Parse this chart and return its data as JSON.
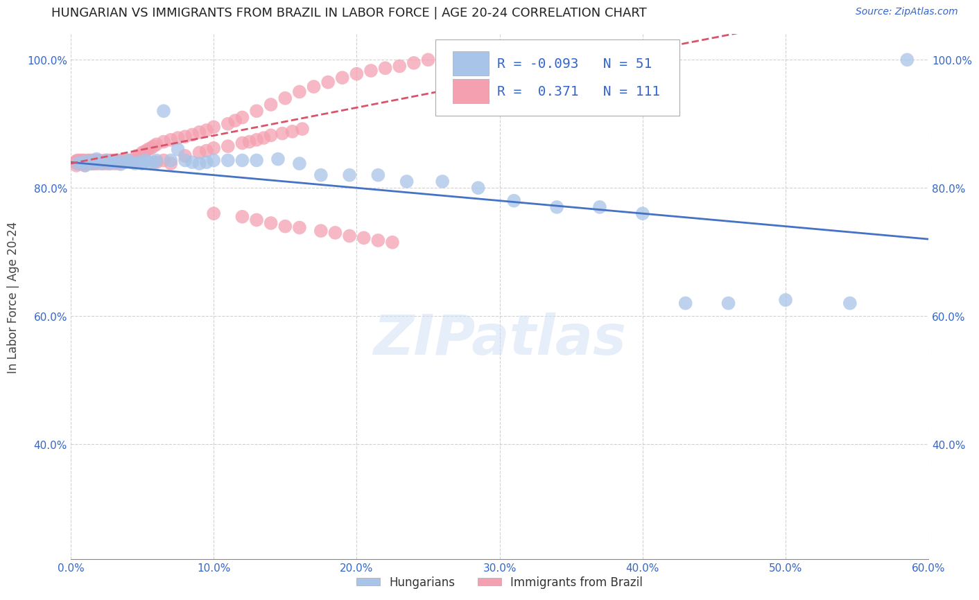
{
  "title": "HUNGARIAN VS IMMIGRANTS FROM BRAZIL IN LABOR FORCE | AGE 20-24 CORRELATION CHART",
  "source": "Source: ZipAtlas.com",
  "ylabel": "In Labor Force | Age 20-24",
  "xlim": [
    0.0,
    0.6
  ],
  "ylim": [
    0.22,
    1.04
  ],
  "xtick_labels": [
    "0.0%",
    "10.0%",
    "20.0%",
    "30.0%",
    "40.0%",
    "50.0%",
    "60.0%"
  ],
  "xtick_vals": [
    0.0,
    0.1,
    0.2,
    0.3,
    0.4,
    0.5,
    0.6
  ],
  "ytick_labels": [
    "40.0%",
    "60.0%",
    "80.0%",
    "100.0%"
  ],
  "ytick_vals": [
    0.4,
    0.6,
    0.8,
    1.0
  ],
  "blue_color": "#A8C4E8",
  "pink_color": "#F4A0B0",
  "blue_line_color": "#4472C4",
  "pink_line_color": "#D9536A",
  "R_blue": "-0.093",
  "N_blue": "51",
  "R_pink": "0.371",
  "N_pink": "111",
  "watermark": "ZIPatlas",
  "blue_scatter_x": [
    0.005,
    0.008,
    0.01,
    0.012,
    0.015,
    0.018,
    0.02,
    0.022,
    0.025,
    0.028,
    0.03,
    0.032,
    0.035,
    0.038,
    0.04,
    0.042,
    0.045,
    0.048,
    0.05,
    0.052,
    0.055,
    0.058,
    0.06,
    0.065,
    0.07,
    0.075,
    0.08,
    0.085,
    0.09,
    0.095,
    0.1,
    0.11,
    0.12,
    0.13,
    0.145,
    0.16,
    0.175,
    0.195,
    0.215,
    0.235,
    0.26,
    0.285,
    0.31,
    0.34,
    0.37,
    0.4,
    0.43,
    0.46,
    0.5,
    0.545,
    0.585
  ],
  "blue_scatter_y": [
    0.838,
    0.84,
    0.835,
    0.842,
    0.838,
    0.845,
    0.84,
    0.838,
    0.843,
    0.838,
    0.84,
    0.843,
    0.837,
    0.84,
    0.843,
    0.84,
    0.838,
    0.84,
    0.838,
    0.843,
    0.84,
    0.84,
    0.843,
    0.92,
    0.843,
    0.86,
    0.843,
    0.84,
    0.838,
    0.84,
    0.843,
    0.843,
    0.843,
    0.843,
    0.845,
    0.838,
    0.82,
    0.82,
    0.82,
    0.81,
    0.81,
    0.8,
    0.78,
    0.77,
    0.77,
    0.76,
    0.62,
    0.62,
    0.625,
    0.62,
    1.0
  ],
  "pink_scatter_x": [
    0.003,
    0.004,
    0.004,
    0.005,
    0.005,
    0.006,
    0.007,
    0.007,
    0.008,
    0.008,
    0.009,
    0.01,
    0.01,
    0.01,
    0.011,
    0.012,
    0.012,
    0.013,
    0.014,
    0.014,
    0.015,
    0.015,
    0.016,
    0.016,
    0.017,
    0.017,
    0.018,
    0.019,
    0.02,
    0.02,
    0.021,
    0.022,
    0.023,
    0.024,
    0.025,
    0.025,
    0.026,
    0.027,
    0.028,
    0.029,
    0.03,
    0.031,
    0.032,
    0.033,
    0.034,
    0.035,
    0.036,
    0.038,
    0.04,
    0.042,
    0.044,
    0.046,
    0.048,
    0.05,
    0.052,
    0.054,
    0.056,
    0.058,
    0.06,
    0.065,
    0.07,
    0.075,
    0.08,
    0.085,
    0.09,
    0.095,
    0.1,
    0.11,
    0.115,
    0.12,
    0.13,
    0.14,
    0.15,
    0.16,
    0.17,
    0.18,
    0.19,
    0.2,
    0.21,
    0.22,
    0.23,
    0.24,
    0.25,
    0.1,
    0.12,
    0.13,
    0.14,
    0.15,
    0.16,
    0.175,
    0.185,
    0.195,
    0.205,
    0.215,
    0.225,
    0.06,
    0.065,
    0.07,
    0.08,
    0.09,
    0.095,
    0.1,
    0.11,
    0.12,
    0.125,
    0.13,
    0.135,
    0.14,
    0.148,
    0.155,
    0.162
  ],
  "pink_scatter_y": [
    0.84,
    0.835,
    0.842,
    0.838,
    0.843,
    0.84,
    0.838,
    0.843,
    0.842,
    0.838,
    0.843,
    0.84,
    0.835,
    0.842,
    0.838,
    0.84,
    0.843,
    0.84,
    0.838,
    0.843,
    0.84,
    0.838,
    0.84,
    0.843,
    0.838,
    0.84,
    0.843,
    0.838,
    0.84,
    0.843,
    0.84,
    0.838,
    0.84,
    0.843,
    0.838,
    0.84,
    0.843,
    0.838,
    0.843,
    0.84,
    0.843,
    0.838,
    0.84,
    0.843,
    0.838,
    0.843,
    0.84,
    0.843,
    0.843,
    0.843,
    0.843,
    0.85,
    0.85,
    0.855,
    0.857,
    0.86,
    0.862,
    0.865,
    0.868,
    0.872,
    0.875,
    0.878,
    0.88,
    0.883,
    0.887,
    0.89,
    0.895,
    0.9,
    0.905,
    0.91,
    0.92,
    0.93,
    0.94,
    0.95,
    0.958,
    0.965,
    0.972,
    0.978,
    0.983,
    0.987,
    0.99,
    0.995,
    1.0,
    0.76,
    0.755,
    0.75,
    0.745,
    0.74,
    0.738,
    0.733,
    0.73,
    0.725,
    0.722,
    0.718,
    0.715,
    0.84,
    0.843,
    0.838,
    0.85,
    0.855,
    0.858,
    0.862,
    0.865,
    0.87,
    0.872,
    0.875,
    0.878,
    0.882,
    0.885,
    0.888,
    0.892
  ]
}
